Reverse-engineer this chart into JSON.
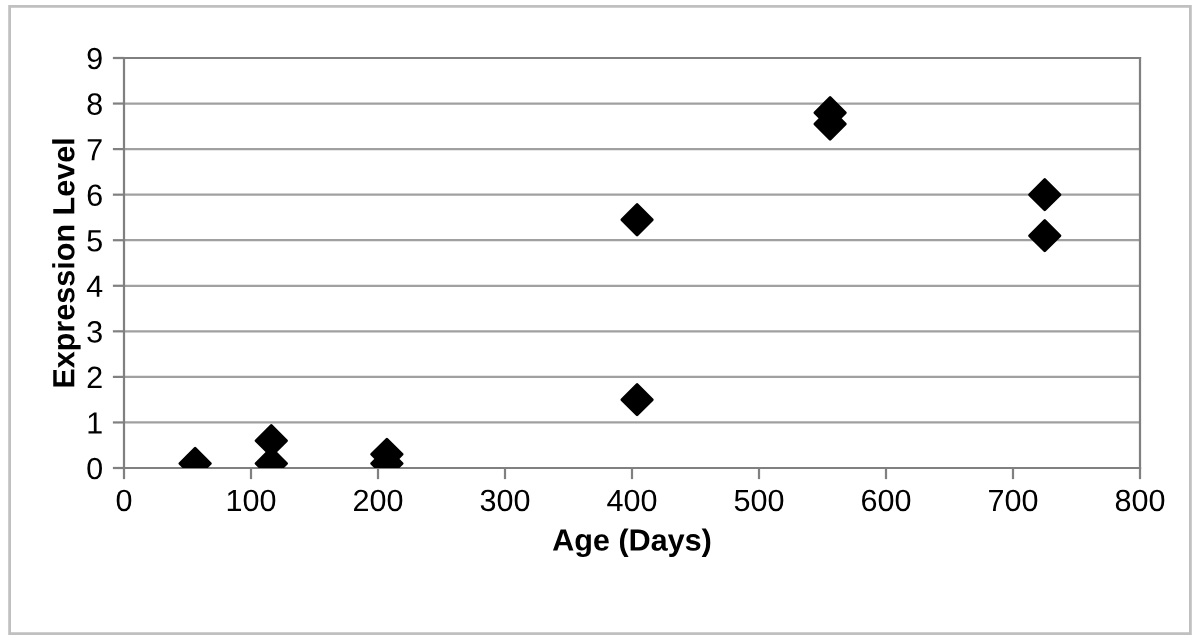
{
  "chart_data": {
    "type": "scatter",
    "xlabel": "Age (Days)",
    "ylabel": "Expression Level",
    "x": [
      56,
      116,
      116,
      207,
      207,
      404,
      404,
      556,
      556,
      725,
      725
    ],
    "series": [
      {
        "color": "#000000",
        "values": [
          0.1,
          0.6,
          0.1,
          0.3,
          0.1,
          5.45,
          1.5,
          7.8,
          7.55,
          6.0,
          5.1
        ]
      }
    ],
    "xlim": [
      0,
      800
    ],
    "xticks": [
      0,
      100,
      200,
      300,
      400,
      500,
      600,
      700,
      800
    ],
    "ylim": [
      0,
      9
    ],
    "yticks": [
      0,
      1,
      2,
      3,
      4,
      5,
      6,
      7,
      8,
      9
    ],
    "grid": "y",
    "marker": "diamond",
    "legend": false
  }
}
